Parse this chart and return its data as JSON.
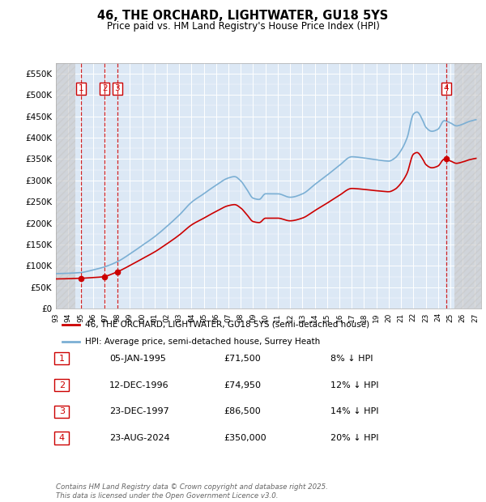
{
  "title": "46, THE ORCHARD, LIGHTWATER, GU18 5YS",
  "subtitle": "Price paid vs. HM Land Registry's House Price Index (HPI)",
  "ylim": [
    0,
    575000
  ],
  "yticks": [
    0,
    50000,
    100000,
    150000,
    200000,
    250000,
    300000,
    350000,
    400000,
    450000,
    500000,
    550000
  ],
  "ytick_labels": [
    "£0",
    "£50K",
    "£100K",
    "£150K",
    "£200K",
    "£250K",
    "£300K",
    "£350K",
    "£400K",
    "£450K",
    "£500K",
    "£550K"
  ],
  "xlim_start": 1993.0,
  "xlim_end": 2027.5,
  "hpi_line_color": "#7bafd4",
  "price_color": "#cc0000",
  "background_color": "#dce8f5",
  "transactions": [
    {
      "num": 1,
      "date": "05-JAN-1995",
      "price": 71500,
      "pct": "8%",
      "year": 1995.04
    },
    {
      "num": 2,
      "date": "12-DEC-1996",
      "price": 74950,
      "pct": "12%",
      "year": 1996.95
    },
    {
      "num": 3,
      "date": "23-DEC-1997",
      "price": 86500,
      "pct": "14%",
      "year": 1997.98
    },
    {
      "num": 4,
      "date": "23-AUG-2024",
      "price": 350000,
      "pct": "20%",
      "year": 2024.65
    }
  ],
  "legend_line1": "46, THE ORCHARD, LIGHTWATER, GU18 5YS (semi-detached house)",
  "legend_line2": "HPI: Average price, semi-detached house, Surrey Heath",
  "footer": "Contains HM Land Registry data © Crown copyright and database right 2025.\nThis data is licensed under the Open Government Licence v3.0."
}
